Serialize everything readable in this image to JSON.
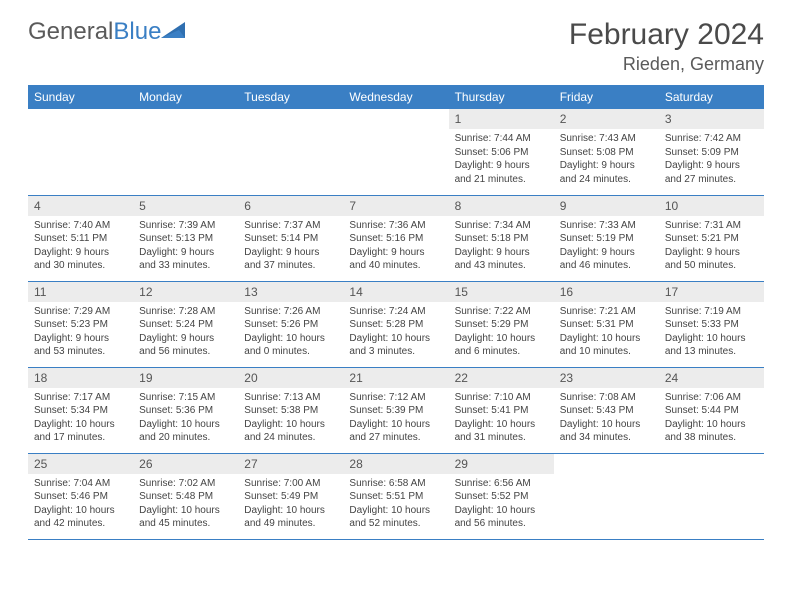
{
  "brand": {
    "part1": "General",
    "part2": "Blue"
  },
  "title": "February 2024",
  "location": "Rieden, Germany",
  "colors": {
    "header_bg": "#3a7fc4",
    "header_text": "#ffffff",
    "daynum_bg": "#ececec",
    "border": "#3a7fc4",
    "text": "#444444",
    "brand_gray": "#5a5a5a",
    "brand_blue": "#3a7fc4"
  },
  "weekdays": [
    "Sunday",
    "Monday",
    "Tuesday",
    "Wednesday",
    "Thursday",
    "Friday",
    "Saturday"
  ],
  "weeks": [
    [
      {
        "day": "",
        "sunrise": "",
        "sunset": "",
        "daylight": "",
        "empty": true
      },
      {
        "day": "",
        "sunrise": "",
        "sunset": "",
        "daylight": "",
        "empty": true
      },
      {
        "day": "",
        "sunrise": "",
        "sunset": "",
        "daylight": "",
        "empty": true
      },
      {
        "day": "",
        "sunrise": "",
        "sunset": "",
        "daylight": "",
        "empty": true
      },
      {
        "day": "1",
        "sunrise": "Sunrise: 7:44 AM",
        "sunset": "Sunset: 5:06 PM",
        "daylight": "Daylight: 9 hours and 21 minutes."
      },
      {
        "day": "2",
        "sunrise": "Sunrise: 7:43 AM",
        "sunset": "Sunset: 5:08 PM",
        "daylight": "Daylight: 9 hours and 24 minutes."
      },
      {
        "day": "3",
        "sunrise": "Sunrise: 7:42 AM",
        "sunset": "Sunset: 5:09 PM",
        "daylight": "Daylight: 9 hours and 27 minutes."
      }
    ],
    [
      {
        "day": "4",
        "sunrise": "Sunrise: 7:40 AM",
        "sunset": "Sunset: 5:11 PM",
        "daylight": "Daylight: 9 hours and 30 minutes."
      },
      {
        "day": "5",
        "sunrise": "Sunrise: 7:39 AM",
        "sunset": "Sunset: 5:13 PM",
        "daylight": "Daylight: 9 hours and 33 minutes."
      },
      {
        "day": "6",
        "sunrise": "Sunrise: 7:37 AM",
        "sunset": "Sunset: 5:14 PM",
        "daylight": "Daylight: 9 hours and 37 minutes."
      },
      {
        "day": "7",
        "sunrise": "Sunrise: 7:36 AM",
        "sunset": "Sunset: 5:16 PM",
        "daylight": "Daylight: 9 hours and 40 minutes."
      },
      {
        "day": "8",
        "sunrise": "Sunrise: 7:34 AM",
        "sunset": "Sunset: 5:18 PM",
        "daylight": "Daylight: 9 hours and 43 minutes."
      },
      {
        "day": "9",
        "sunrise": "Sunrise: 7:33 AM",
        "sunset": "Sunset: 5:19 PM",
        "daylight": "Daylight: 9 hours and 46 minutes."
      },
      {
        "day": "10",
        "sunrise": "Sunrise: 7:31 AM",
        "sunset": "Sunset: 5:21 PM",
        "daylight": "Daylight: 9 hours and 50 minutes."
      }
    ],
    [
      {
        "day": "11",
        "sunrise": "Sunrise: 7:29 AM",
        "sunset": "Sunset: 5:23 PM",
        "daylight": "Daylight: 9 hours and 53 minutes."
      },
      {
        "day": "12",
        "sunrise": "Sunrise: 7:28 AM",
        "sunset": "Sunset: 5:24 PM",
        "daylight": "Daylight: 9 hours and 56 minutes."
      },
      {
        "day": "13",
        "sunrise": "Sunrise: 7:26 AM",
        "sunset": "Sunset: 5:26 PM",
        "daylight": "Daylight: 10 hours and 0 minutes."
      },
      {
        "day": "14",
        "sunrise": "Sunrise: 7:24 AM",
        "sunset": "Sunset: 5:28 PM",
        "daylight": "Daylight: 10 hours and 3 minutes."
      },
      {
        "day": "15",
        "sunrise": "Sunrise: 7:22 AM",
        "sunset": "Sunset: 5:29 PM",
        "daylight": "Daylight: 10 hours and 6 minutes."
      },
      {
        "day": "16",
        "sunrise": "Sunrise: 7:21 AM",
        "sunset": "Sunset: 5:31 PM",
        "daylight": "Daylight: 10 hours and 10 minutes."
      },
      {
        "day": "17",
        "sunrise": "Sunrise: 7:19 AM",
        "sunset": "Sunset: 5:33 PM",
        "daylight": "Daylight: 10 hours and 13 minutes."
      }
    ],
    [
      {
        "day": "18",
        "sunrise": "Sunrise: 7:17 AM",
        "sunset": "Sunset: 5:34 PM",
        "daylight": "Daylight: 10 hours and 17 minutes."
      },
      {
        "day": "19",
        "sunrise": "Sunrise: 7:15 AM",
        "sunset": "Sunset: 5:36 PM",
        "daylight": "Daylight: 10 hours and 20 minutes."
      },
      {
        "day": "20",
        "sunrise": "Sunrise: 7:13 AM",
        "sunset": "Sunset: 5:38 PM",
        "daylight": "Daylight: 10 hours and 24 minutes."
      },
      {
        "day": "21",
        "sunrise": "Sunrise: 7:12 AM",
        "sunset": "Sunset: 5:39 PM",
        "daylight": "Daylight: 10 hours and 27 minutes."
      },
      {
        "day": "22",
        "sunrise": "Sunrise: 7:10 AM",
        "sunset": "Sunset: 5:41 PM",
        "daylight": "Daylight: 10 hours and 31 minutes."
      },
      {
        "day": "23",
        "sunrise": "Sunrise: 7:08 AM",
        "sunset": "Sunset: 5:43 PM",
        "daylight": "Daylight: 10 hours and 34 minutes."
      },
      {
        "day": "24",
        "sunrise": "Sunrise: 7:06 AM",
        "sunset": "Sunset: 5:44 PM",
        "daylight": "Daylight: 10 hours and 38 minutes."
      }
    ],
    [
      {
        "day": "25",
        "sunrise": "Sunrise: 7:04 AM",
        "sunset": "Sunset: 5:46 PM",
        "daylight": "Daylight: 10 hours and 42 minutes."
      },
      {
        "day": "26",
        "sunrise": "Sunrise: 7:02 AM",
        "sunset": "Sunset: 5:48 PM",
        "daylight": "Daylight: 10 hours and 45 minutes."
      },
      {
        "day": "27",
        "sunrise": "Sunrise: 7:00 AM",
        "sunset": "Sunset: 5:49 PM",
        "daylight": "Daylight: 10 hours and 49 minutes."
      },
      {
        "day": "28",
        "sunrise": "Sunrise: 6:58 AM",
        "sunset": "Sunset: 5:51 PM",
        "daylight": "Daylight: 10 hours and 52 minutes."
      },
      {
        "day": "29",
        "sunrise": "Sunrise: 6:56 AM",
        "sunset": "Sunset: 5:52 PM",
        "daylight": "Daylight: 10 hours and 56 minutes."
      },
      {
        "day": "",
        "sunrise": "",
        "sunset": "",
        "daylight": "",
        "empty": true
      },
      {
        "day": "",
        "sunrise": "",
        "sunset": "",
        "daylight": "",
        "empty": true
      }
    ]
  ]
}
